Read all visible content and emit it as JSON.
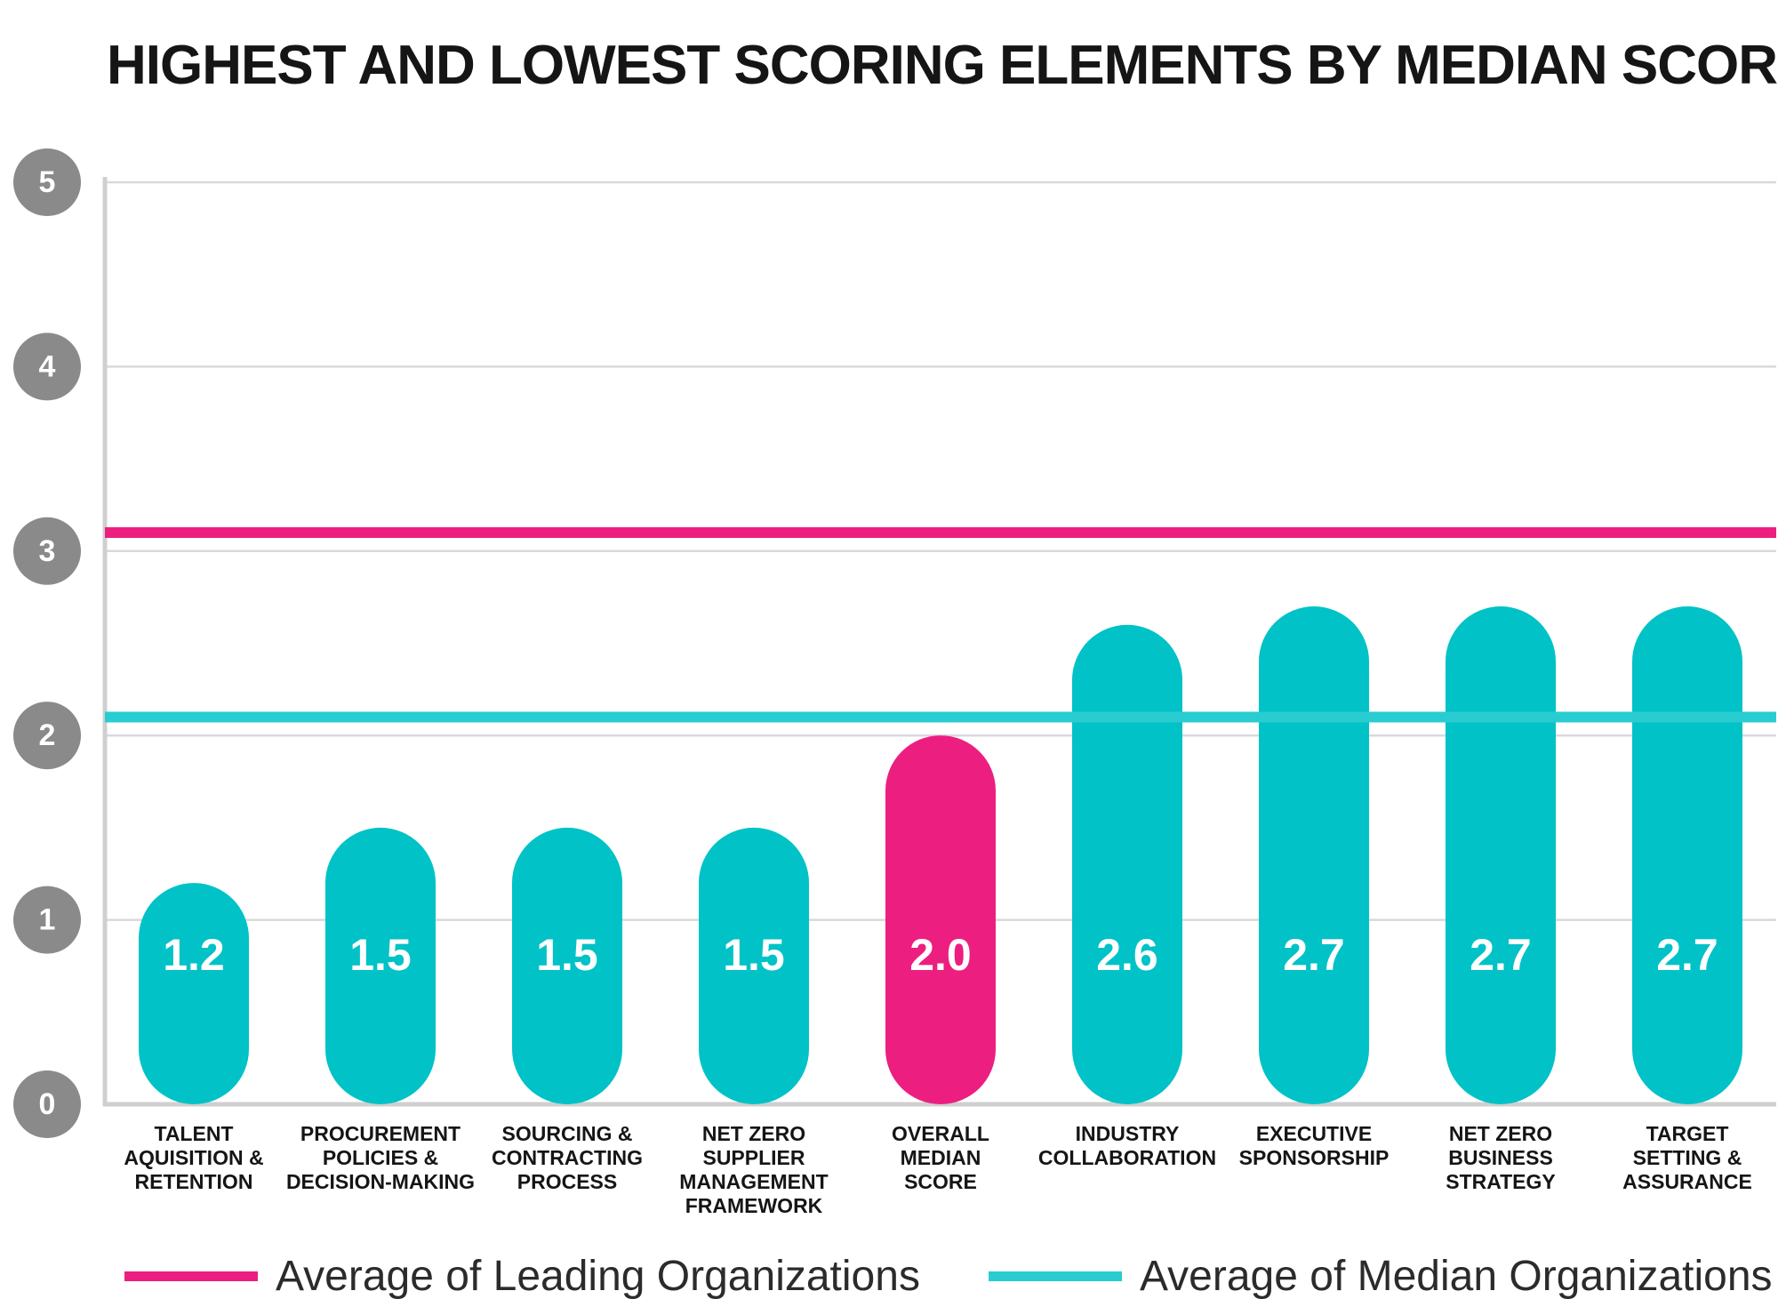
{
  "chart_data": {
    "type": "bar",
    "title": "HIGHEST AND LOWEST SCORING ELEMENTS BY MEDIAN SCORES",
    "categories": [
      [
        "TALENT",
        "AQUISITION &",
        "RETENTION"
      ],
      [
        "PROCUREMENT",
        "POLICIES &",
        "DECISION-MAKING"
      ],
      [
        "SOURCING &",
        "CONTRACTING",
        "PROCESS"
      ],
      [
        "NET ZERO",
        "SUPPLIER",
        "MANAGEMENT",
        "FRAMEWORK"
      ],
      [
        "OVERALL",
        "MEDIAN",
        "SCORE"
      ],
      [
        "INDUSTRY",
        "COLLABORATION"
      ],
      [
        "EXECUTIVE",
        "SPONSORSHIP"
      ],
      [
        "NET ZERO",
        "BUSINESS",
        "STRATEGY"
      ],
      [
        "TARGET",
        "SETTING &",
        "ASSURANCE"
      ]
    ],
    "values": [
      1.2,
      1.5,
      1.5,
      1.5,
      2.0,
      2.6,
      2.7,
      2.7,
      2.7
    ],
    "value_labels": [
      "1.2",
      "1.5",
      "1.5",
      "1.5",
      "2.0",
      "2.6",
      "2.7",
      "2.7",
      "2.7"
    ],
    "highlight_index": 4,
    "bar_color": "#00c2c7",
    "highlight_color": "#ec1f80",
    "ylim": [
      0,
      5
    ],
    "yticks": [
      "0",
      "1",
      "2",
      "3",
      "4",
      "5"
    ],
    "grid": true,
    "reference_lines": [
      {
        "name": "Average of Leading Organizations",
        "value": 3.1,
        "color": "#ec1f80"
      },
      {
        "name": "Average of Median Organizations",
        "value": 2.1,
        "color": "#29ccd1"
      }
    ],
    "legend_position": "bottom"
  },
  "colors": {
    "axis": "#cfcfcf",
    "grid": "#d9d9d9",
    "tick_badge": "#8a8a8a"
  }
}
